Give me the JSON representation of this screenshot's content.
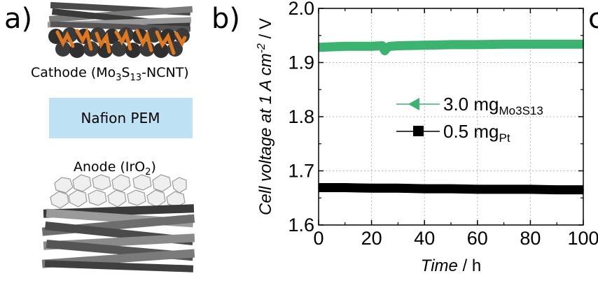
{
  "panel_a": {
    "letter": "a)",
    "cathode": {
      "label_prefix": "Cathode (Mo",
      "sub1": "3",
      "label_mid": "S",
      "sub2": "13",
      "label_suffix": "-NCNT)"
    },
    "membrane": {
      "label": "Nafion PEM",
      "color": "#bfe3f5"
    },
    "anode": {
      "label_prefix": "Anode (IrO",
      "sub": "2",
      "label_suffix": ")"
    },
    "colors": {
      "cnt_dark": "#3a3a3a",
      "cnt_mid": "#6d6d6d",
      "cnt_light": "#9a9a9a",
      "mos_particles": "#e07820",
      "iro2_particles": "#efefef"
    }
  },
  "panel_b": {
    "letter": "b)",
    "cut_letter": "c"
  },
  "chart_data": {
    "type": "line",
    "xlabel": {
      "italic": "Time",
      "rest": " / h"
    },
    "ylabel": {
      "italic": "Cell voltage at 1 A cm",
      "sup": "-2",
      "rest": " / V"
    },
    "xlim": [
      0,
      100
    ],
    "ylim": [
      1.6,
      2.0
    ],
    "x_ticks": [
      "0",
      "20",
      "40",
      "60",
      "80",
      "100"
    ],
    "y_ticks": [
      "1.6",
      "1.7",
      "1.8",
      "1.9",
      "2.0"
    ],
    "grid": true,
    "legend_position": "center",
    "series": [
      {
        "name": "3.0 mg",
        "name_sub": "Mo3S13",
        "color": "#3cb371",
        "marker": "triangle-left",
        "x": [
          0,
          5,
          10,
          15,
          20,
          24,
          25,
          26,
          27,
          30,
          40,
          50,
          60,
          70,
          80,
          90,
          100
        ],
        "y": [
          1.928,
          1.929,
          1.93,
          1.93,
          1.93,
          1.931,
          1.922,
          1.928,
          1.93,
          1.931,
          1.932,
          1.933,
          1.933,
          1.934,
          1.934,
          1.934,
          1.934
        ]
      },
      {
        "name": "0.5 mg",
        "name_sub": "Pt",
        "color": "#000000",
        "marker": "square",
        "x": [
          0,
          10,
          20,
          30,
          40,
          50,
          60,
          70,
          80,
          90,
          100
        ],
        "y": [
          1.669,
          1.669,
          1.668,
          1.668,
          1.667,
          1.667,
          1.666,
          1.666,
          1.666,
          1.665,
          1.665
        ]
      }
    ]
  }
}
